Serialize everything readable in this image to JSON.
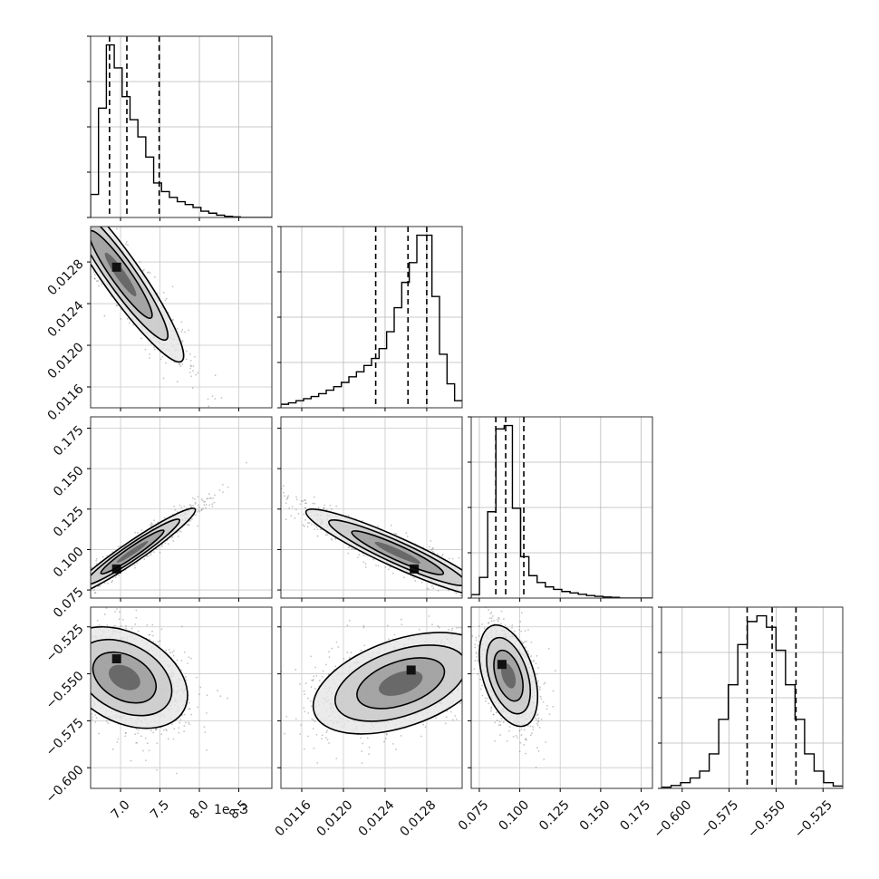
{
  "chart_data": {
    "type": "corner",
    "offset_label": "1e−3",
    "params": [
      {
        "range": [
          6.62,
          8.92
        ],
        "ticks": [
          7.0,
          7.5,
          8.0,
          8.5
        ],
        "tick_labels": [
          "7.0",
          "7.5",
          "8.0",
          "8.5"
        ],
        "quantiles": [
          6.86,
          7.08,
          7.49
        ],
        "hist": [
          0.08,
          0.38,
          0.6,
          0.52,
          0.42,
          0.34,
          0.28,
          0.21,
          0.12,
          0.09,
          0.07,
          0.055,
          0.045,
          0.035,
          0.022,
          0.015,
          0.008,
          0.004,
          0.002,
          0.0,
          0.0,
          0.0,
          0.0
        ]
      },
      {
        "range": [
          0.0114,
          0.01314
        ],
        "ticks": [
          0.0116,
          0.012,
          0.0124,
          0.0128
        ],
        "tick_labels": [
          "0.0116",
          "0.0120",
          "0.0124",
          "0.0128"
        ],
        "quantiles": [
          0.01231,
          0.01262,
          0.0128
        ],
        "hist": [
          0.005,
          0.007,
          0.01,
          0.013,
          0.016,
          0.02,
          0.025,
          0.03,
          0.036,
          0.044,
          0.051,
          0.06,
          0.07,
          0.084,
          0.108,
          0.142,
          0.178,
          0.206,
          0.245,
          0.245,
          0.158,
          0.076,
          0.034,
          0.01
        ]
      },
      {
        "range": [
          0.07,
          0.182
        ],
        "ticks": [
          0.075,
          0.1,
          0.125,
          0.15,
          0.175
        ],
        "tick_labels": [
          "0.075",
          "0.100",
          "0.125",
          "0.150",
          "0.175"
        ],
        "quantiles": [
          0.0852,
          0.0913,
          0.1025
        ],
        "hist": [
          0.02,
          0.12,
          0.5,
          0.98,
          1.0,
          0.52,
          0.24,
          0.13,
          0.09,
          0.065,
          0.05,
          0.038,
          0.03,
          0.022,
          0.015,
          0.01,
          0.006,
          0.004,
          0.0,
          0.0,
          0.0,
          0.0
        ]
      },
      {
        "range": [
          -0.611,
          -0.5145
        ],
        "ticks": [
          -0.6,
          -0.575,
          -0.55,
          -0.525
        ],
        "tick_labels": [
          "−0.600",
          "−0.575",
          "−0.550",
          "−0.525"
        ],
        "quantiles": [
          -0.5654,
          -0.5521,
          -0.5394
        ],
        "hist": [
          0.002,
          0.005,
          0.01,
          0.018,
          0.03,
          0.06,
          0.12,
          0.18,
          0.25,
          0.29,
          0.3,
          0.28,
          0.24,
          0.18,
          0.12,
          0.06,
          0.03,
          0.01,
          0.004
        ]
      }
    ],
    "correlations": [
      {
        "pair": [
          0,
          1
        ],
        "mean": [
          7.0,
          0.01268
        ],
        "sd": [
          0.4,
          0.00042
        ],
        "rho": -0.93,
        "peak": [
          6.95,
          0.01275
        ]
      },
      {
        "pair": [
          0,
          2
        ],
        "mean": [
          7.15,
          0.0985
        ],
        "sd": [
          0.4,
          0.0135
        ],
        "rho": 0.96,
        "peak": [
          6.95,
          0.088
        ]
      },
      {
        "pair": [
          0,
          3
        ],
        "mean": [
          7.05,
          -0.552
        ],
        "sd": [
          0.4,
          0.0135
        ],
        "rho": -0.35,
        "peak": [
          6.95,
          -0.542
        ]
      },
      {
        "pair": [
          1,
          2
        ],
        "mean": [
          0.01252,
          0.098
        ],
        "sd": [
          0.00044,
          0.0135
        ],
        "rho": -0.93,
        "peak": [
          0.01268,
          0.088
        ]
      },
      {
        "pair": [
          1,
          3
        ],
        "mean": [
          0.01255,
          -0.555
        ],
        "sd": [
          0.00042,
          0.0135
        ],
        "rho": 0.45,
        "peak": [
          0.01265,
          -0.548
        ]
      },
      {
        "pair": [
          2,
          3
        ],
        "mean": [
          0.093,
          -0.551
        ],
        "sd": [
          0.009,
          0.0135
        ],
        "rho": -0.42,
        "peak": [
          0.089,
          -0.545
        ]
      }
    ]
  }
}
